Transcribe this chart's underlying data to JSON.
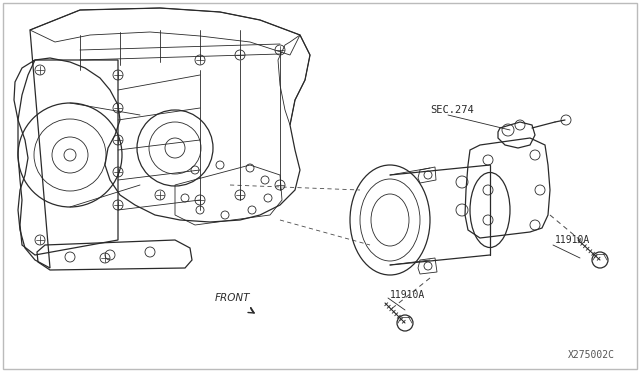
{
  "bg_color": "#ffffff",
  "line_color": "#2a2a2a",
  "text_color": "#1a1a1a",
  "fig_width": 6.4,
  "fig_height": 3.72,
  "dpi": 100,
  "border_color": "#aaaaaa",
  "watermark_text": "X275002C",
  "front_label": "FRONT",
  "sec274_label": "SEC.274",
  "label_11910A": "11910A",
  "thin_lw": 0.6,
  "med_lw": 0.9,
  "thick_lw": 1.2
}
